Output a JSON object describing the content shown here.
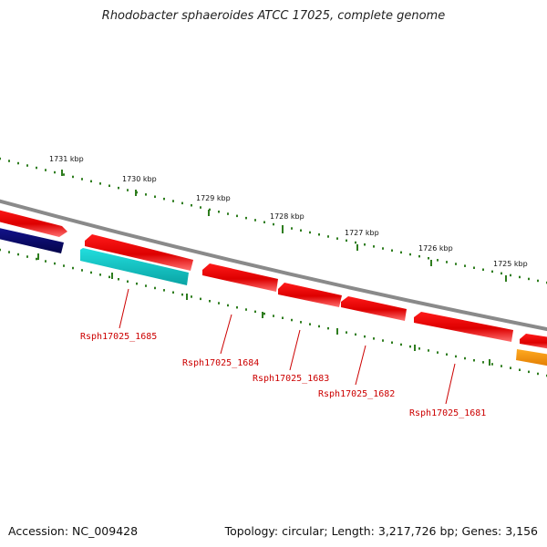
{
  "title": "Rhodobacter sphaeroides ATCC 17025, complete genome",
  "footer": {
    "accession": "Accession: NC_009428",
    "summary": "Topology: circular; Length: 3,217,726 bp; Genes: 3,156"
  },
  "colors": {
    "backbone": "#8a8a8a",
    "gene_red": "#ee0000",
    "gene_cyan": "#22cccc",
    "gene_navy": "#0a0a7a",
    "gene_orange": "#ff9900",
    "tick_green": "#2e7d1e",
    "label_red": "#cc0000"
  },
  "ruler": {
    "labels": [
      "1731 kbp",
      "1730 kbp",
      "1729 kbp",
      "1728 kbp",
      "1727 kbp",
      "1726 kbp",
      "1725 kbp"
    ]
  },
  "genes": [
    {
      "label": "Rsph17025_1685",
      "color": "cyan",
      "strand": "minus"
    },
    {
      "label": "Rsph17025_1684",
      "color": "red",
      "strand": "minus"
    },
    {
      "label": "Rsph17025_1683",
      "color": "red",
      "strand": "minus"
    },
    {
      "label": "Rsph17025_1682",
      "color": "red",
      "strand": "minus"
    },
    {
      "label": "Rsph17025_1681",
      "color": "red",
      "strand": "minus"
    }
  ]
}
